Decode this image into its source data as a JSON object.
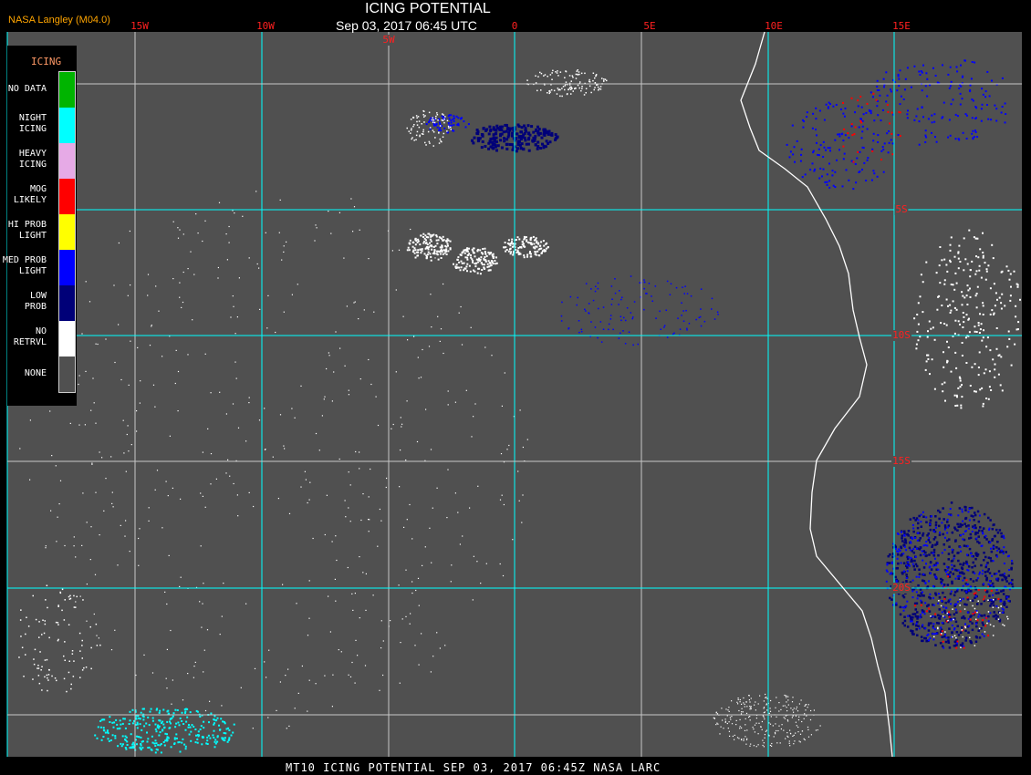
{
  "header": {
    "credit": "NASA Langley (M04.0)",
    "title": "ICING POTENTIAL",
    "datetime": "Sep 03, 2017 06:45 UTC"
  },
  "footer": {
    "text": "MT10   ICING POTENTIAL   SEP 03, 2017 06:45Z   NASA LARC"
  },
  "legend": {
    "title": "ICING",
    "items": [
      {
        "label": "NO DATA",
        "color": "#00b400"
      },
      {
        "label": "NIGHT ICING",
        "color": "#00ffff"
      },
      {
        "label": "HEAVY ICING",
        "color": "#e6aae6"
      },
      {
        "label": "MOG LIKELY",
        "color": "#ff0000"
      },
      {
        "label": "HI PROB LIGHT",
        "color": "#ffff00"
      },
      {
        "label": "MED PROB LIGHT",
        "color": "#0000ff"
      },
      {
        "label": "LOW PROB",
        "color": "#000078"
      },
      {
        "label": "NO RETRVL",
        "color": "#ffffff"
      },
      {
        "label": "NONE",
        "color": "#505050"
      }
    ]
  },
  "grid": {
    "longitudes": [
      "15W",
      "10W",
      "5W",
      "0",
      "5E",
      "10E",
      "15E"
    ],
    "latitudes": [
      "5S",
      "10S",
      "15S",
      "20S"
    ]
  },
  "colors": {
    "background": "#505050",
    "grid_primary": "#00ffff",
    "grid_secondary": "#c8c8c8",
    "coastline": "#ffffff",
    "label": "#ff2020"
  }
}
